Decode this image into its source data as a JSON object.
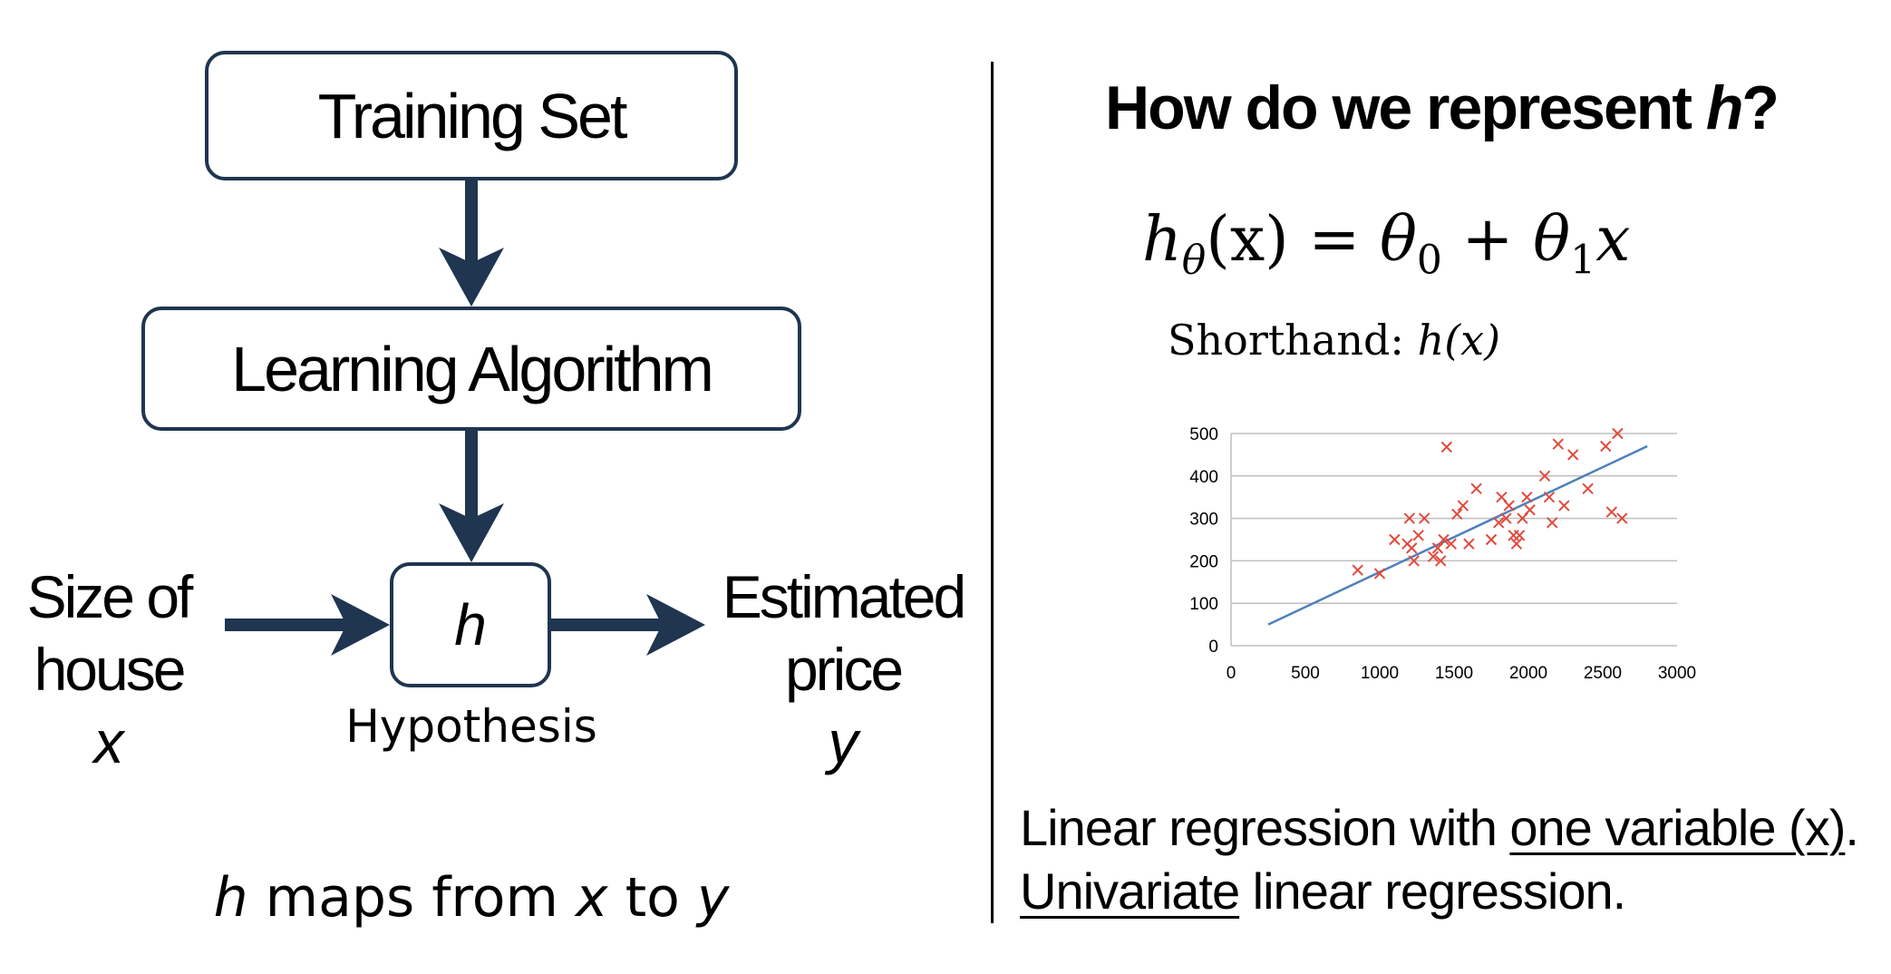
{
  "left": {
    "training_set": "Training Set",
    "learning_algorithm": "Learning Algorithm",
    "h": "h",
    "input": {
      "line1": "Size of",
      "line2": "house",
      "var": "x"
    },
    "output": {
      "line1": "Estimated",
      "line2": "price",
      "var": "y"
    },
    "hypothesis": "Hypothesis",
    "maps": {
      "h": "h",
      "mid": " maps from ",
      "x": "x",
      "to": " to ",
      "y": "y"
    },
    "colors": {
      "box_border": "#1f3550",
      "arrow": "#1f3550"
    }
  },
  "right": {
    "question": {
      "prefix": "How do we represent ",
      "var": "h",
      "suffix": "?"
    },
    "equation": {
      "h": "h",
      "theta_sub": "θ",
      "lhs_arg": "(x)",
      "equals": " = ",
      "theta0": "θ",
      "sub0": "0",
      "plus": " + ",
      "theta1": "θ",
      "sub1": "1",
      "x": "x"
    },
    "shorthand": {
      "label": "Shorthand: ",
      "value": "h(x)"
    },
    "line1": {
      "prefix": "Linear regression with ",
      "underlined": "one variable (x)",
      "suffix": "."
    },
    "line2": {
      "underlined": "Univariate",
      "suffix": " linear regression."
    }
  },
  "chart_data": {
    "type": "scatter",
    "title": "",
    "xlabel": "",
    "ylabel": "",
    "xlim": [
      0,
      3000
    ],
    "ylim": [
      0,
      500
    ],
    "x_ticks": [
      0,
      500,
      1000,
      1500,
      2000,
      2500,
      3000
    ],
    "y_ticks": [
      0,
      100,
      200,
      300,
      400,
      500
    ],
    "grid": "horizontal",
    "colors": {
      "points": "#e04a3c",
      "fit_line": "#4f81bd",
      "grid": "#bfbfbf"
    },
    "points": [
      [
        852,
        178
      ],
      [
        1000,
        170
      ],
      [
        1100,
        250
      ],
      [
        1185,
        240
      ],
      [
        1200,
        300
      ],
      [
        1215,
        230
      ],
      [
        1230,
        200
      ],
      [
        1260,
        260
      ],
      [
        1300,
        300
      ],
      [
        1360,
        210
      ],
      [
        1390,
        230
      ],
      [
        1410,
        200
      ],
      [
        1430,
        250
      ],
      [
        1450,
        468
      ],
      [
        1480,
        240
      ],
      [
        1520,
        310
      ],
      [
        1560,
        330
      ],
      [
        1600,
        240
      ],
      [
        1650,
        370
      ],
      [
        1750,
        250
      ],
      [
        1800,
        290
      ],
      [
        1820,
        350
      ],
      [
        1850,
        300
      ],
      [
        1870,
        330
      ],
      [
        1900,
        260
      ],
      [
        1920,
        240
      ],
      [
        1940,
        260
      ],
      [
        1960,
        300
      ],
      [
        1990,
        350
      ],
      [
        2010,
        320
      ],
      [
        2110,
        400
      ],
      [
        2140,
        350
      ],
      [
        2160,
        290
      ],
      [
        2200,
        475
      ],
      [
        2240,
        330
      ],
      [
        2300,
        450
      ],
      [
        2400,
        370
      ],
      [
        2520,
        470
      ],
      [
        2560,
        315
      ],
      [
        2600,
        500
      ],
      [
        2630,
        300
      ]
    ],
    "fit_line": [
      [
        250,
        50
      ],
      [
        2800,
        470
      ]
    ]
  }
}
